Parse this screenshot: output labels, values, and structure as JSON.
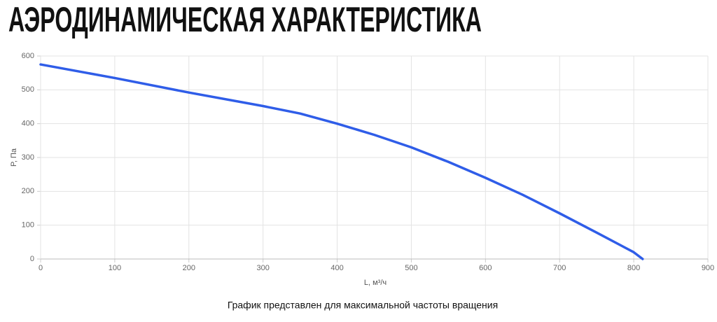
{
  "chart_data": {
    "type": "line",
    "title": "АЭРОДИНАМИЧЕСКАЯ ХАРАКТЕРИСТИКА",
    "x_label": "L, м³/ч",
    "y_label": "P, Па",
    "note": "График представлен для максимальной частоты вращения",
    "x": [
      0,
      100,
      200,
      300,
      350,
      400,
      450,
      500,
      550,
      600,
      650,
      700,
      750,
      800,
      812
    ],
    "values": [
      575,
      535,
      492,
      452,
      430,
      400,
      367,
      330,
      287,
      240,
      190,
      135,
      78,
      20,
      0
    ],
    "color": "#2f5de8",
    "xlim": [
      0,
      900
    ],
    "xticks": [
      0,
      100,
      200,
      300,
      400,
      500,
      600,
      700,
      800,
      900
    ],
    "ylim": [
      0,
      600
    ],
    "yticks": [
      0,
      100,
      200,
      300,
      400,
      500,
      600
    ],
    "grid": true
  }
}
